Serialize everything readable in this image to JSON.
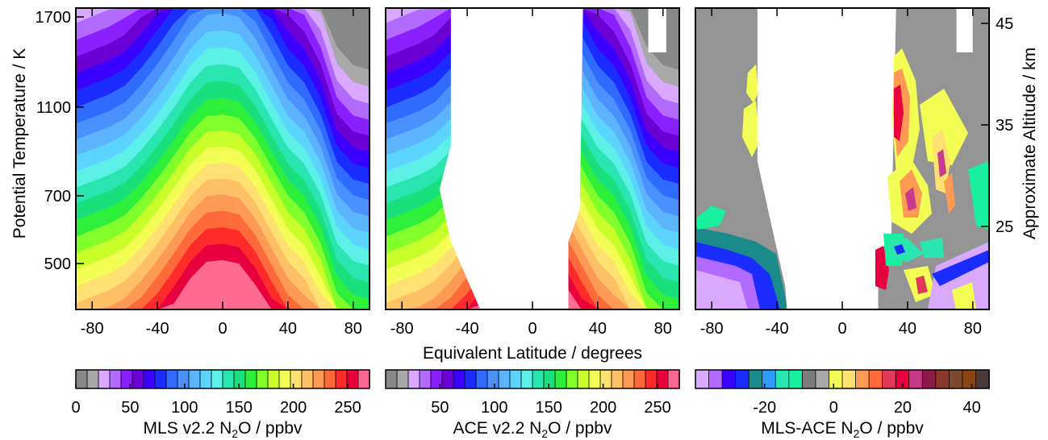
{
  "figure": {
    "y_left_title": "Potential Temperature / K",
    "y_right_title": "Approximate Altitude / km",
    "x_title": "Equivalent Latitude / degrees"
  },
  "chart_data": [
    {
      "type": "heatmap",
      "name": "MLS v2.2 N2O",
      "x": [
        -90,
        -80,
        -70,
        -60,
        -50,
        -40,
        -30,
        -20,
        -10,
        0,
        10,
        20,
        30,
        40,
        50,
        60,
        70,
        80,
        90
      ],
      "xlim": [
        -90,
        90
      ],
      "ylim_theta": [
        400,
        1770
      ],
      "xticks": [
        -80,
        -40,
        0,
        40,
        80
      ],
      "yticks_theta": [
        500,
        700,
        1100,
        1700
      ],
      "profile_description": "N2O decreases with altitude; contour surfaces dome over the tropics and drop steeply toward the poles",
      "n2o_150ppbv_theta_K": [
        620,
        640,
        660,
        690,
        750,
        830,
        930,
        1050,
        1140,
        1150,
        1130,
        1020,
        880,
        760,
        700,
        600,
        470,
        430,
        420
      ],
      "color_range": [
        0,
        270
      ]
    },
    {
      "type": "heatmap",
      "name": "ACE v2.2 N2O",
      "x": [
        -90,
        -80,
        -70,
        -60,
        -50,
        -40,
        -30,
        -20,
        -10,
        0,
        10,
        20,
        30,
        40,
        50,
        60,
        70,
        80,
        90
      ],
      "xlim": [
        -90,
        90
      ],
      "xticks": [
        -80,
        -40,
        0,
        40,
        80
      ],
      "data_coverage": "measurements at equivalent latitudes poleward of about 30 degrees; tropics unsampled",
      "color_range": [
        0,
        270
      ]
    },
    {
      "type": "heatmap",
      "name": "MLS-ACE N2O difference",
      "x": [
        -90,
        -80,
        -70,
        -60,
        -50,
        -40,
        -30,
        -20,
        -10,
        0,
        10,
        20,
        30,
        40,
        50,
        60,
        70,
        80,
        90
      ],
      "xlim": [
        -90,
        90
      ],
      "xticks": [
        -80,
        -40,
        0,
        40,
        80
      ],
      "yticks_altitude_km": [
        25,
        35,
        45
      ],
      "color_range": [
        -40,
        45
      ],
      "notable_features": "mostly near zero (gray); positive differences up to ~40 ppbv near 30-70N; negative differences near -20 to -40 ppbv in the southern lower levels"
    }
  ],
  "colorbars": [
    {
      "label_prefix": "MLS v2.2 N",
      "label_sub": "2",
      "label_suffix": "O / ppbv",
      "ticks": [
        "0",
        "50",
        "100",
        "150",
        "200",
        "250"
      ],
      "tick_values": [
        0,
        50,
        100,
        150,
        200,
        250
      ],
      "range": [
        0,
        270
      ],
      "colors": [
        "#888888",
        "#a8a8a8",
        "#d9a8ff",
        "#b36bff",
        "#8a1fff",
        "#6a00d4",
        "#3a00ff",
        "#1a2cff",
        "#2f6bff",
        "#4a90ff",
        "#5cb4ff",
        "#5cd4ff",
        "#5cf0e6",
        "#29e6b0",
        "#18e07a",
        "#2ef03a",
        "#80ff2a",
        "#c8ff2a",
        "#f4ff55",
        "#ffe070",
        "#ffc066",
        "#ff9a55",
        "#ff6a3a",
        "#ff2a2a",
        "#e8003e",
        "#ff6a92"
      ]
    },
    {
      "label_prefix": "ACE v2.2 N",
      "label_sub": "2",
      "label_suffix": "O / ppbv",
      "ticks": [
        "50",
        "100",
        "150",
        "200",
        "250"
      ],
      "tick_values": [
        50,
        100,
        150,
        200,
        250
      ],
      "range": [
        0,
        270
      ],
      "colors": [
        "#888888",
        "#a8a8a8",
        "#d9a8ff",
        "#b36bff",
        "#8a1fff",
        "#6a00d4",
        "#3a00ff",
        "#1a2cff",
        "#2f6bff",
        "#4a90ff",
        "#5cb4ff",
        "#5cd4ff",
        "#5cf0e6",
        "#29e6b0",
        "#18e07a",
        "#2ef03a",
        "#80ff2a",
        "#c8ff2a",
        "#f4ff55",
        "#ffe070",
        "#ffc066",
        "#ff9a55",
        "#ff6a3a",
        "#ff2a2a",
        "#e8003e",
        "#ff6a92"
      ]
    },
    {
      "label_prefix": "MLS-ACE N",
      "label_sub": "2",
      "label_suffix": "O / ppbv",
      "ticks": [
        "-20",
        "0",
        "20",
        "40"
      ],
      "tick_values": [
        -20,
        0,
        20,
        40
      ],
      "range": [
        -40,
        45
      ],
      "colors": [
        "#d9a8ff",
        "#b36bff",
        "#3a00ff",
        "#1a2cff",
        "#1a8a8a",
        "#2f9bff",
        "#29e6b0",
        "#18f0a0",
        "#7c7c7c",
        "#a8a8a8",
        "#f4ff55",
        "#ffe070",
        "#ff9a55",
        "#ff6a3a",
        "#e03a5a",
        "#e8003e",
        "#c83a8a",
        "#8a1a4a",
        "#8a3a2a",
        "#7a4a2a",
        "#8a4410",
        "#4a3a3a"
      ]
    }
  ],
  "colors": {
    "no_data": "#ffffff",
    "frame": "#000000",
    "near_zero_gray": "#949494"
  }
}
